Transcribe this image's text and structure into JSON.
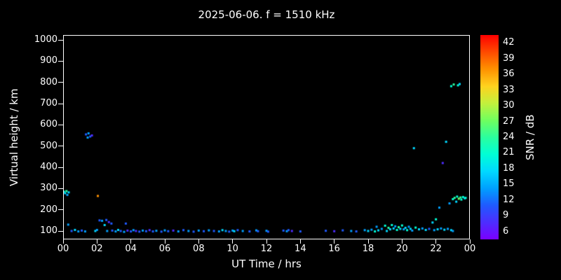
{
  "chart_data": {
    "type": "scatter",
    "title": "2025-06-06. f = 1510 kHz",
    "xlabel": "UT Time / hrs",
    "ylabel": "Virtual height / km",
    "background": "#000000",
    "grid": false,
    "x_axis": {
      "min": 0,
      "max": 24,
      "tick_step": 2,
      "tick_labels": [
        "00",
        "02",
        "04",
        "06",
        "08",
        "10",
        "12",
        "14",
        "16",
        "18",
        "20",
        "22",
        "00"
      ]
    },
    "y_axis": {
      "min": 100,
      "max": 1000,
      "tick_step": 100,
      "tick_labels": [
        "100",
        "200",
        "300",
        "400",
        "500",
        "600",
        "700",
        "800",
        "900",
        "1000"
      ]
    },
    "colorbar": {
      "label": "SNR / dB",
      "position": "right",
      "ticks": [
        6,
        9,
        12,
        15,
        18,
        21,
        24,
        27,
        30,
        33,
        36,
        39,
        42
      ],
      "colors": [
        "#7a00ff",
        "#4d2dff",
        "#1f5aff",
        "#00a0ff",
        "#00d9ff",
        "#00ffd5",
        "#2bff9e",
        "#70ff5e",
        "#c3f03c",
        "#ffd21e",
        "#ff9100",
        "#ff4a00",
        "#ff0000"
      ]
    },
    "points_format": [
      "ut_time_hours",
      "virtual_height_km",
      "snr_db"
    ],
    "points": [
      [
        0.05,
        285,
        21
      ],
      [
        0.12,
        278,
        18
      ],
      [
        0.2,
        288,
        24
      ],
      [
        0.25,
        270,
        15
      ],
      [
        0.33,
        282,
        18
      ],
      [
        0.3,
        130,
        15
      ],
      [
        0.5,
        100,
        12
      ],
      [
        0.7,
        105,
        18
      ],
      [
        0.9,
        98,
        15
      ],
      [
        1.1,
        102,
        12
      ],
      [
        1.3,
        98,
        15
      ],
      [
        1.35,
        555,
        12
      ],
      [
        1.45,
        540,
        15
      ],
      [
        1.5,
        560,
        15
      ],
      [
        1.6,
        545,
        12
      ],
      [
        1.7,
        550,
        9
      ],
      [
        1.9,
        100,
        18
      ],
      [
        2.0,
        105,
        15
      ],
      [
        2.05,
        265,
        36
      ],
      [
        2.15,
        150,
        12
      ],
      [
        2.3,
        148,
        15
      ],
      [
        2.45,
        128,
        18
      ],
      [
        2.55,
        152,
        12
      ],
      [
        2.6,
        100,
        15
      ],
      [
        2.7,
        142,
        9
      ],
      [
        2.85,
        135,
        12
      ],
      [
        2.9,
        102,
        12
      ],
      [
        3.1,
        98,
        15
      ],
      [
        3.25,
        105,
        18
      ],
      [
        3.4,
        100,
        12
      ],
      [
        3.6,
        96,
        15
      ],
      [
        3.7,
        135,
        12
      ],
      [
        3.8,
        102,
        9
      ],
      [
        4.0,
        98,
        12
      ],
      [
        4.15,
        104,
        15
      ],
      [
        4.3,
        100,
        9
      ],
      [
        4.5,
        97,
        12
      ],
      [
        4.7,
        102,
        15
      ],
      [
        4.9,
        99,
        12
      ],
      [
        5.1,
        104,
        9
      ],
      [
        5.3,
        98,
        12
      ],
      [
        5.5,
        101,
        15
      ],
      [
        5.8,
        97,
        12
      ],
      [
        6.0,
        103,
        15
      ],
      [
        6.2,
        99,
        12
      ],
      [
        6.5,
        102,
        9
      ],
      [
        6.8,
        98,
        15
      ],
      [
        7.1,
        104,
        12
      ],
      [
        7.4,
        100,
        15
      ],
      [
        7.7,
        97,
        12
      ],
      [
        8.0,
        102,
        15
      ],
      [
        8.3,
        99,
        12
      ],
      [
        8.6,
        103,
        15
      ],
      [
        8.9,
        100,
        12
      ],
      [
        9.2,
        98,
        15
      ],
      [
        9.4,
        104,
        18
      ],
      [
        9.6,
        100,
        15
      ],
      [
        9.8,
        97,
        12
      ],
      [
        10.0,
        102,
        15
      ],
      [
        10.1,
        99,
        18
      ],
      [
        10.3,
        104,
        12
      ],
      [
        10.6,
        100,
        15
      ],
      [
        11.0,
        98,
        12
      ],
      [
        11.4,
        103,
        15
      ],
      [
        11.5,
        99,
        12
      ],
      [
        12.0,
        101,
        15
      ],
      [
        12.1,
        97,
        12
      ],
      [
        13.0,
        102,
        12
      ],
      [
        13.2,
        99,
        15
      ],
      [
        13.3,
        104,
        12
      ],
      [
        13.5,
        100,
        9
      ],
      [
        14.0,
        98,
        12
      ],
      [
        15.5,
        101,
        12
      ],
      [
        16.0,
        99,
        9
      ],
      [
        16.5,
        103,
        12
      ],
      [
        17.0,
        100,
        15
      ],
      [
        17.3,
        98,
        12
      ],
      [
        17.8,
        104,
        15
      ],
      [
        18.0,
        100,
        18
      ],
      [
        18.2,
        106,
        15
      ],
      [
        18.4,
        98,
        21
      ],
      [
        18.5,
        120,
        15
      ],
      [
        18.6,
        103,
        18
      ],
      [
        18.8,
        110,
        15
      ],
      [
        19.0,
        125,
        21
      ],
      [
        19.1,
        100,
        18
      ],
      [
        19.2,
        115,
        24
      ],
      [
        19.3,
        108,
        18
      ],
      [
        19.4,
        128,
        21
      ],
      [
        19.5,
        112,
        18
      ],
      [
        19.6,
        122,
        15
      ],
      [
        19.7,
        105,
        21
      ],
      [
        19.8,
        118,
        24
      ],
      [
        19.9,
        110,
        18
      ],
      [
        20.0,
        126,
        21
      ],
      [
        20.1,
        108,
        15
      ],
      [
        20.2,
        115,
        18
      ],
      [
        20.3,
        104,
        21
      ],
      [
        20.4,
        120,
        15
      ],
      [
        20.5,
        110,
        18
      ],
      [
        20.6,
        102,
        15
      ],
      [
        20.7,
        490,
        18
      ],
      [
        20.8,
        116,
        21
      ],
      [
        21.0,
        108,
        18
      ],
      [
        21.2,
        112,
        15
      ],
      [
        21.4,
        105,
        18
      ],
      [
        21.6,
        110,
        12
      ],
      [
        21.8,
        140,
        18
      ],
      [
        21.9,
        104,
        15
      ],
      [
        22.0,
        155,
        21
      ],
      [
        22.1,
        108,
        18
      ],
      [
        22.2,
        210,
        15
      ],
      [
        22.3,
        112,
        15
      ],
      [
        22.4,
        420,
        9
      ],
      [
        22.5,
        106,
        18
      ],
      [
        22.6,
        520,
        18
      ],
      [
        22.7,
        110,
        15
      ],
      [
        22.8,
        230,
        15
      ],
      [
        22.9,
        104,
        18
      ],
      [
        22.9,
        782,
        21
      ],
      [
        23.0,
        250,
        21
      ],
      [
        23.0,
        100,
        15
      ],
      [
        23.05,
        790,
        24
      ],
      [
        23.1,
        256,
        24
      ],
      [
        23.2,
        238,
        18
      ],
      [
        23.25,
        262,
        21
      ],
      [
        23.3,
        786,
        21
      ],
      [
        23.35,
        252,
        27
      ],
      [
        23.4,
        792,
        18
      ],
      [
        23.45,
        258,
        24
      ],
      [
        23.5,
        248,
        21
      ],
      [
        23.6,
        260,
        21
      ],
      [
        23.7,
        254,
        18
      ],
      [
        23.75,
        256,
        21
      ]
    ]
  }
}
